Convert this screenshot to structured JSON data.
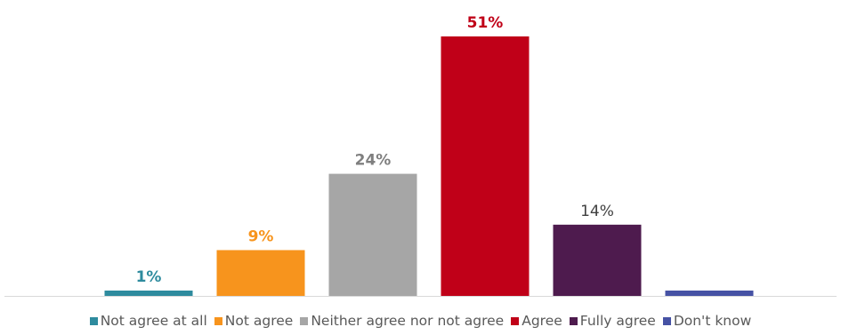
{
  "chart_data": {
    "type": "bar",
    "categories": [
      "Not agree at all",
      "Not agree",
      "Neither agree nor not agree",
      "Agree",
      "Fully agree",
      "Don't know"
    ],
    "values": [
      1,
      9,
      24,
      51,
      14,
      1
    ],
    "labels": [
      "1%",
      "9%",
      "24%",
      "51%",
      "14%",
      ""
    ],
    "colors": [
      "#2e8b9e",
      "#f7941d",
      "#a6a6a6",
      "#c00018",
      "#4e1b4e",
      "#4652a4"
    ],
    "label_colors": [
      "#2e8b9e",
      "#f7941d",
      "#7f7f7f",
      "#c00018",
      "#404040",
      "#4652a4"
    ],
    "ylim": [
      0,
      51
    ],
    "legend_position": "bottom",
    "grid": false
  }
}
